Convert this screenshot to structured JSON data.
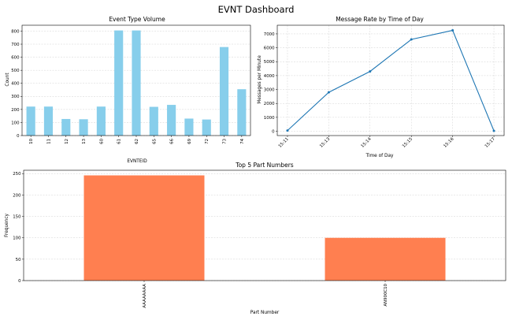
{
  "dashboard_title": "EVNT Dashboard",
  "chart_data": [
    {
      "type": "bar",
      "title": "Event Type Volume",
      "xlabel": "EVNTEID",
      "ylabel": "Count",
      "categories": [
        "10",
        "11",
        "12",
        "13",
        "60",
        "61",
        "62",
        "65",
        "66",
        "69",
        "72",
        "73",
        "74"
      ],
      "values": [
        222,
        222,
        127,
        125,
        222,
        805,
        805,
        220,
        235,
        130,
        123,
        678,
        355
      ],
      "yticks": [
        0,
        100,
        200,
        300,
        400,
        500,
        600,
        700,
        800
      ],
      "ylim": [
        0,
        845
      ],
      "color": "#87ceeb",
      "grid": true
    },
    {
      "type": "line",
      "title": "Message Rate by Time of Day",
      "xlabel": "Time of Day",
      "ylabel": "Messages per Minute",
      "x": [
        "15:11",
        "15:13",
        "15:14",
        "15:15",
        "15:16",
        "15:17"
      ],
      "y": [
        50,
        2800,
        4300,
        6600,
        7250,
        30
      ],
      "yticks": [
        0,
        1000,
        2000,
        3000,
        4000,
        5000,
        6000,
        7000
      ],
      "ylim": [
        -310,
        7620
      ],
      "color": "#1f77b4",
      "grid": true
    },
    {
      "type": "bar",
      "title": "Top 5 Part Numbers",
      "xlabel": "Part Number",
      "ylabel": "Frequency",
      "categories": [
        "AAAAAAAA",
        "AN900C10"
      ],
      "values": [
        246,
        100
      ],
      "yticks": [
        0,
        50,
        100,
        150,
        200,
        250
      ],
      "ylim": [
        0,
        258
      ],
      "color": "#ff7f50",
      "grid": true
    }
  ]
}
